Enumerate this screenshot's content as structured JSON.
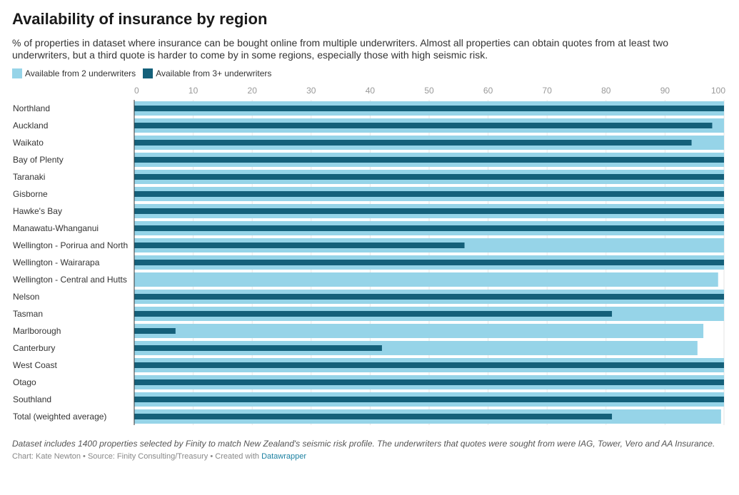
{
  "header": {
    "title": "Availability of insurance by region",
    "subtitle": "% of properties in dataset where insurance can be bought online from multiple underwriters. Almost all properties can obtain quotes from at least two underwriters, but a third quote is harder to come by in some regions, especially those with high seismic risk."
  },
  "legend": {
    "items": [
      {
        "label": "Available from 2 underwriters",
        "color": "#96d4e8"
      },
      {
        "label": "Available from 3+ underwriters",
        "color": "#14607a"
      }
    ]
  },
  "chart_data": {
    "type": "bar",
    "orientation": "horizontal",
    "categories": [
      "Northland",
      "Auckland",
      "Waikato",
      "Bay of Plenty",
      "Taranaki",
      "Gisborne",
      "Hawke's Bay",
      "Manawatu-Whanganui",
      "Wellington - Porirua and North",
      "Wellington - Wairarapa",
      "Wellington - Central and Hutts",
      "Nelson",
      "Tasman",
      "Marlborough",
      "Canterbury",
      "West Coast",
      "Otago",
      "Southland",
      "Total (weighted average)"
    ],
    "series": [
      {
        "name": "Available from 2 underwriters",
        "color": "#96d4e8",
        "values": [
          100,
          100,
          100,
          100,
          100,
          100,
          100,
          100,
          100,
          100,
          99,
          100,
          100,
          96.5,
          95.5,
          100,
          100,
          100,
          99.5
        ]
      },
      {
        "name": "Available from 3+ underwriters",
        "color": "#14607a",
        "values": [
          100,
          98,
          94.5,
          100,
          100,
          100,
          100,
          100,
          56,
          100,
          0,
          100,
          81,
          7,
          42,
          100,
          100,
          100,
          81
        ]
      }
    ],
    "xlim": [
      0,
      100
    ],
    "ticks": [
      0,
      10,
      20,
      30,
      40,
      50,
      60,
      70,
      80,
      90,
      100
    ],
    "grid": true,
    "legend_position": "top-left"
  },
  "footer": {
    "notes": "Dataset includes 1400 properties selected by Finity to match New Zealand's seismic risk profile. The underwriters that quotes were sought from were IAG, Tower, Vero and AA Insurance.",
    "byline_prefix": "Chart: Kate Newton • Source: Finity Consulting/Treasury • Created with ",
    "byline_link": "Datawrapper"
  }
}
